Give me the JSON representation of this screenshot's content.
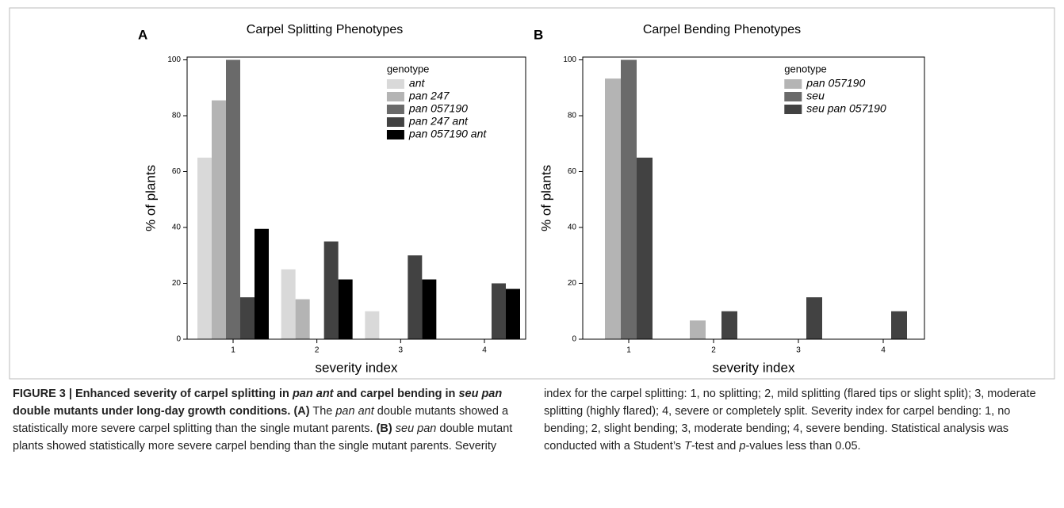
{
  "chart_data": [
    {
      "type": "bar",
      "panel": "A",
      "title": "Carpel Splitting Phenotypes",
      "x_label": "severity index",
      "y_label": "% of plants",
      "categories": [
        "1",
        "2",
        "3",
        "4"
      ],
      "series": [
        {
          "name": "ant",
          "color": "#d9d9d9",
          "values": [
            65,
            25,
            10,
            0
          ]
        },
        {
          "name": "pan 247",
          "color": "#b4b4b4",
          "values": [
            85.5,
            14.3,
            0,
            0
          ]
        },
        {
          "name": "pan 057190",
          "color": "#6a6a6a",
          "values": [
            100,
            0,
            0,
            0
          ]
        },
        {
          "name": "pan 247 ant",
          "color": "#424242",
          "values": [
            15,
            35,
            30,
            20
          ]
        },
        {
          "name": "pan 057190 ant",
          "color": "#000000",
          "values": [
            39.5,
            21.4,
            21.4,
            18
          ]
        }
      ],
      "legend_title": "genotype",
      "legend": "top-right",
      "ylim": [
        0,
        101
      ],
      "yticks": [
        0,
        20,
        40,
        60,
        80,
        100
      ]
    },
    {
      "type": "bar",
      "panel": "B",
      "title": "Carpel Bending Phenotypes",
      "x_label": "severity index",
      "y_label": "% of plants",
      "categories": [
        "1",
        "2",
        "3",
        "4"
      ],
      "series": [
        {
          "name": "pan 057190",
          "color": "#b4b4b4",
          "values": [
            93.3,
            6.7,
            0,
            0
          ]
        },
        {
          "name": "seu",
          "color": "#6a6a6a",
          "values": [
            100,
            0,
            0,
            0
          ]
        },
        {
          "name": "seu pan 057190",
          "color": "#424242",
          "values": [
            65,
            10,
            15,
            10
          ]
        }
      ],
      "legend_title": "genotype",
      "legend": "top-right",
      "ylim": [
        0,
        101
      ],
      "yticks": [
        0,
        20,
        40,
        60,
        80,
        100
      ]
    }
  ],
  "caption": {
    "runs": [
      "FIGURE 3 | Enhanced severity of carpel splitting in ",
      "pan ant",
      " and carpel bending in ",
      "seu pan",
      " double mutants under long-day growth conditions.",
      "(A)",
      " The ",
      "pan ant",
      " double mutants showed a statistically more severe carpel splitting than the single mutant parents. ",
      "(B)",
      "seu pan",
      " double mutant plants showed statistically more severe carpel bending than the single mutant parents. Severity index for the carpel splitting: 1, no splitting; 2, mild splitting (flared tips or slight split); 3, moderate splitting (highly flared); 4, severe or completely split. Severity index for carpel bending: 1, no bending; 2, slight bending; 3, moderate bending; 4, severe bending. Statistical analysis was conducted with a Student’s ",
      "T",
      "-test and ",
      "p",
      "-values less than 0.05."
    ]
  }
}
